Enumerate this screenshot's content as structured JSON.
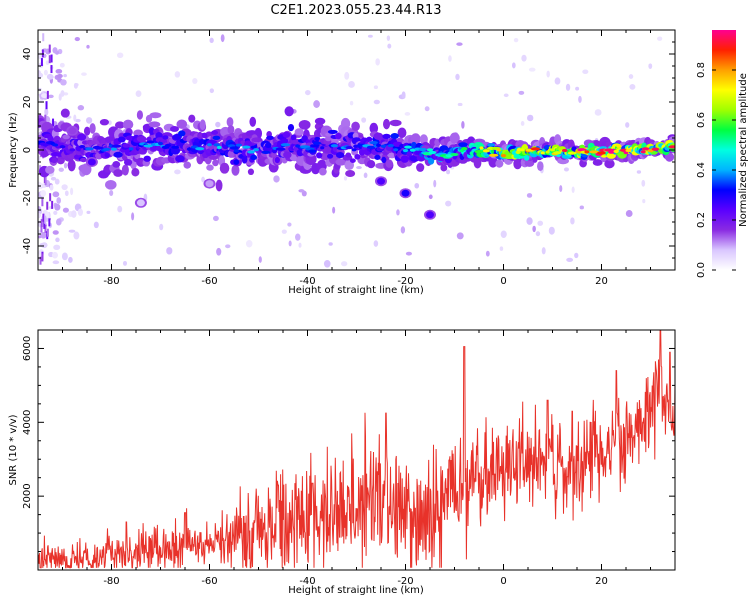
{
  "title": "C2E1.2023.055.23.44.R13",
  "colorbar": {
    "label": "Normalized spectral amplitude",
    "ticks": [
      "0.0",
      "0.2",
      "0.4",
      "0.6",
      "0.8"
    ],
    "tick_values": [
      0.0,
      0.2,
      0.4,
      0.6,
      0.8
    ],
    "range": [
      0,
      0.96
    ],
    "stops": [
      "#ffffff",
      "#d9c6ff",
      "#8a2be2",
      "#5a00ff",
      "#0000ff",
      "#00b4ff",
      "#00ffe0",
      "#00ff40",
      "#a0ff00",
      "#ffff00",
      "#ffa000",
      "#ff2000",
      "#ff0090"
    ]
  },
  "chart_data": [
    {
      "type": "heatmap",
      "title": "",
      "xlabel": "Height of straight line (km)",
      "ylabel": "Frequency (Hz)",
      "xlim": [
        -95,
        35
      ],
      "ylim": [
        -50,
        50
      ],
      "xticks": [
        -80,
        -60,
        -40,
        -20,
        0,
        20
      ],
      "yticks": [
        -40,
        -20,
        0,
        20,
        40
      ],
      "grid": false,
      "band_center": [
        [
          -95,
          3
        ],
        [
          -85,
          0
        ],
        [
          -70,
          2
        ],
        [
          -55,
          1
        ],
        [
          -40,
          1
        ],
        [
          -28,
          2
        ],
        [
          -20,
          0
        ],
        [
          -12,
          -2
        ],
        [
          -5,
          0
        ],
        [
          0,
          -1
        ],
        [
          10,
          0
        ],
        [
          15,
          -1
        ],
        [
          25,
          0
        ],
        [
          35,
          1
        ]
      ],
      "band_halfwidth": [
        [
          -95,
          6
        ],
        [
          -60,
          6
        ],
        [
          -28,
          6
        ],
        [
          -18,
          4
        ],
        [
          -10,
          3
        ],
        [
          0,
          2.5
        ],
        [
          35,
          2
        ]
      ],
      "amplitude_trend": [
        [
          -95,
          0.3
        ],
        [
          -60,
          0.4
        ],
        [
          -30,
          0.35
        ],
        [
          -10,
          0.5
        ],
        [
          0,
          0.8
        ],
        [
          35,
          0.95
        ]
      ],
      "blobs": [
        {
          "x": -84,
          "y": -5,
          "amp": 0.25
        },
        {
          "x": -25,
          "y": -13,
          "amp": 0.25
        },
        {
          "x": -20,
          "y": -18,
          "amp": 0.3
        },
        {
          "x": -15,
          "y": -27,
          "amp": 0.25
        },
        {
          "x": -60,
          "y": -14,
          "amp": 0.1
        },
        {
          "x": -74,
          "y": -22,
          "amp": 0.08
        },
        {
          "x": -88,
          "y": 8,
          "amp": 0.15
        }
      ]
    },
    {
      "type": "line",
      "title": "",
      "xlabel": "Height of straight line (km)",
      "ylabel": "SNR (10 * v/v)",
      "xlim": [
        -95,
        35
      ],
      "ylim": [
        0,
        6500
      ],
      "xticks": [
        -80,
        -60,
        -40,
        -20,
        0,
        20
      ],
      "yticks": [
        2000,
        4000,
        6000
      ],
      "grid": false,
      "color": "#e8322a",
      "trend": [
        [
          -95,
          300
        ],
        [
          -80,
          400
        ],
        [
          -70,
          500
        ],
        [
          -60,
          700
        ],
        [
          -50,
          1000
        ],
        [
          -40,
          1500
        ],
        [
          -30,
          1700
        ],
        [
          -25,
          1800
        ],
        [
          -22,
          1600
        ],
        [
          -14,
          1400
        ],
        [
          -12,
          2000
        ],
        [
          -5,
          2600
        ],
        [
          5,
          3000
        ],
        [
          15,
          2800
        ],
        [
          22,
          3300
        ],
        [
          28,
          3800
        ],
        [
          32,
          4800
        ],
        [
          35,
          4200
        ]
      ],
      "noise": [
        [
          -95,
          250
        ],
        [
          -60,
          350
        ],
        [
          -50,
          650
        ],
        [
          -20,
          800
        ],
        [
          0,
          700
        ],
        [
          35,
          550
        ]
      ],
      "peaks": [
        {
          "x": -77,
          "y": 1300
        },
        {
          "x": -65,
          "y": 1550
        },
        {
          "x": -53,
          "y": 1450
        },
        {
          "x": -46,
          "y": 2300
        },
        {
          "x": -39,
          "y": 2350
        },
        {
          "x": -24,
          "y": 4250
        },
        {
          "x": -8,
          "y": 6050
        },
        {
          "x": 9,
          "y": 4600
        },
        {
          "x": 14,
          "y": 4300
        },
        {
          "x": 23,
          "y": 5400
        },
        {
          "x": 32,
          "y": 6500
        },
        {
          "x": 34,
          "y": 5900
        }
      ]
    }
  ]
}
